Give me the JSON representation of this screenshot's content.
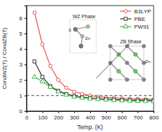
{
  "chart_data": {
    "type": "line",
    "x_label": "Temp. (K)",
    "y_label": "CondWZ(T) / CondZB(T)",
    "x": [
      50,
      100,
      150,
      200,
      250,
      300,
      350,
      400,
      450,
      500,
      550,
      600,
      650,
      700,
      750,
      800
    ],
    "series": [
      {
        "name": "B3LYP",
        "color": "#e8504f",
        "marker": "circle",
        "line_style": "solid",
        "values": [
          6.35,
          4.3,
          2.9,
          2.0,
          1.5,
          1.25,
          1.1,
          1.0,
          0.93,
          0.88,
          0.85,
          0.82,
          0.8,
          0.78,
          0.77,
          0.76
        ]
      },
      {
        "name": "PBE",
        "color": "#333333",
        "marker": "square",
        "line_style": "solid",
        "values": [
          3.2,
          2.2,
          1.6,
          1.3,
          1.1,
          0.98,
          0.9,
          0.84,
          0.8,
          0.77,
          0.75,
          0.73,
          0.71,
          0.7,
          0.69,
          0.68
        ]
      },
      {
        "name": "PW91",
        "color": "#3cb34a",
        "marker": "triangle",
        "line_style": "solid",
        "values": [
          2.2,
          1.9,
          1.55,
          1.25,
          1.05,
          0.92,
          0.85,
          0.8,
          0.76,
          0.73,
          0.7,
          0.68,
          0.66,
          0.64,
          0.63,
          0.62
        ]
      }
    ],
    "reference_line": 1,
    "annotations": [
      "WZ Phase",
      "S",
      "Zn",
      "ZB Phase",
      "Zn"
    ],
    "xlim": [
      0,
      800
    ],
    "xticks": [
      0,
      100,
      200,
      300,
      400,
      500,
      600,
      700,
      800
    ],
    "ylim": [
      0,
      6.8
    ],
    "yticks": [
      0,
      1,
      2,
      3,
      4,
      5,
      6
    ],
    "legend": "top-right",
    "grid": false
  }
}
